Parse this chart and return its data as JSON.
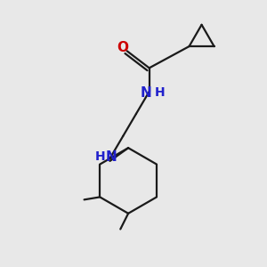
{
  "background_color": "#e8e8e8",
  "bond_color": "#1a1a1a",
  "o_color": "#cc0000",
  "n_color": "#2020cc",
  "line_width": 1.6,
  "figsize": [
    3.0,
    3.0
  ],
  "dpi": 100,
  "xlim": [
    0,
    10
  ],
  "ylim": [
    0,
    10
  ]
}
